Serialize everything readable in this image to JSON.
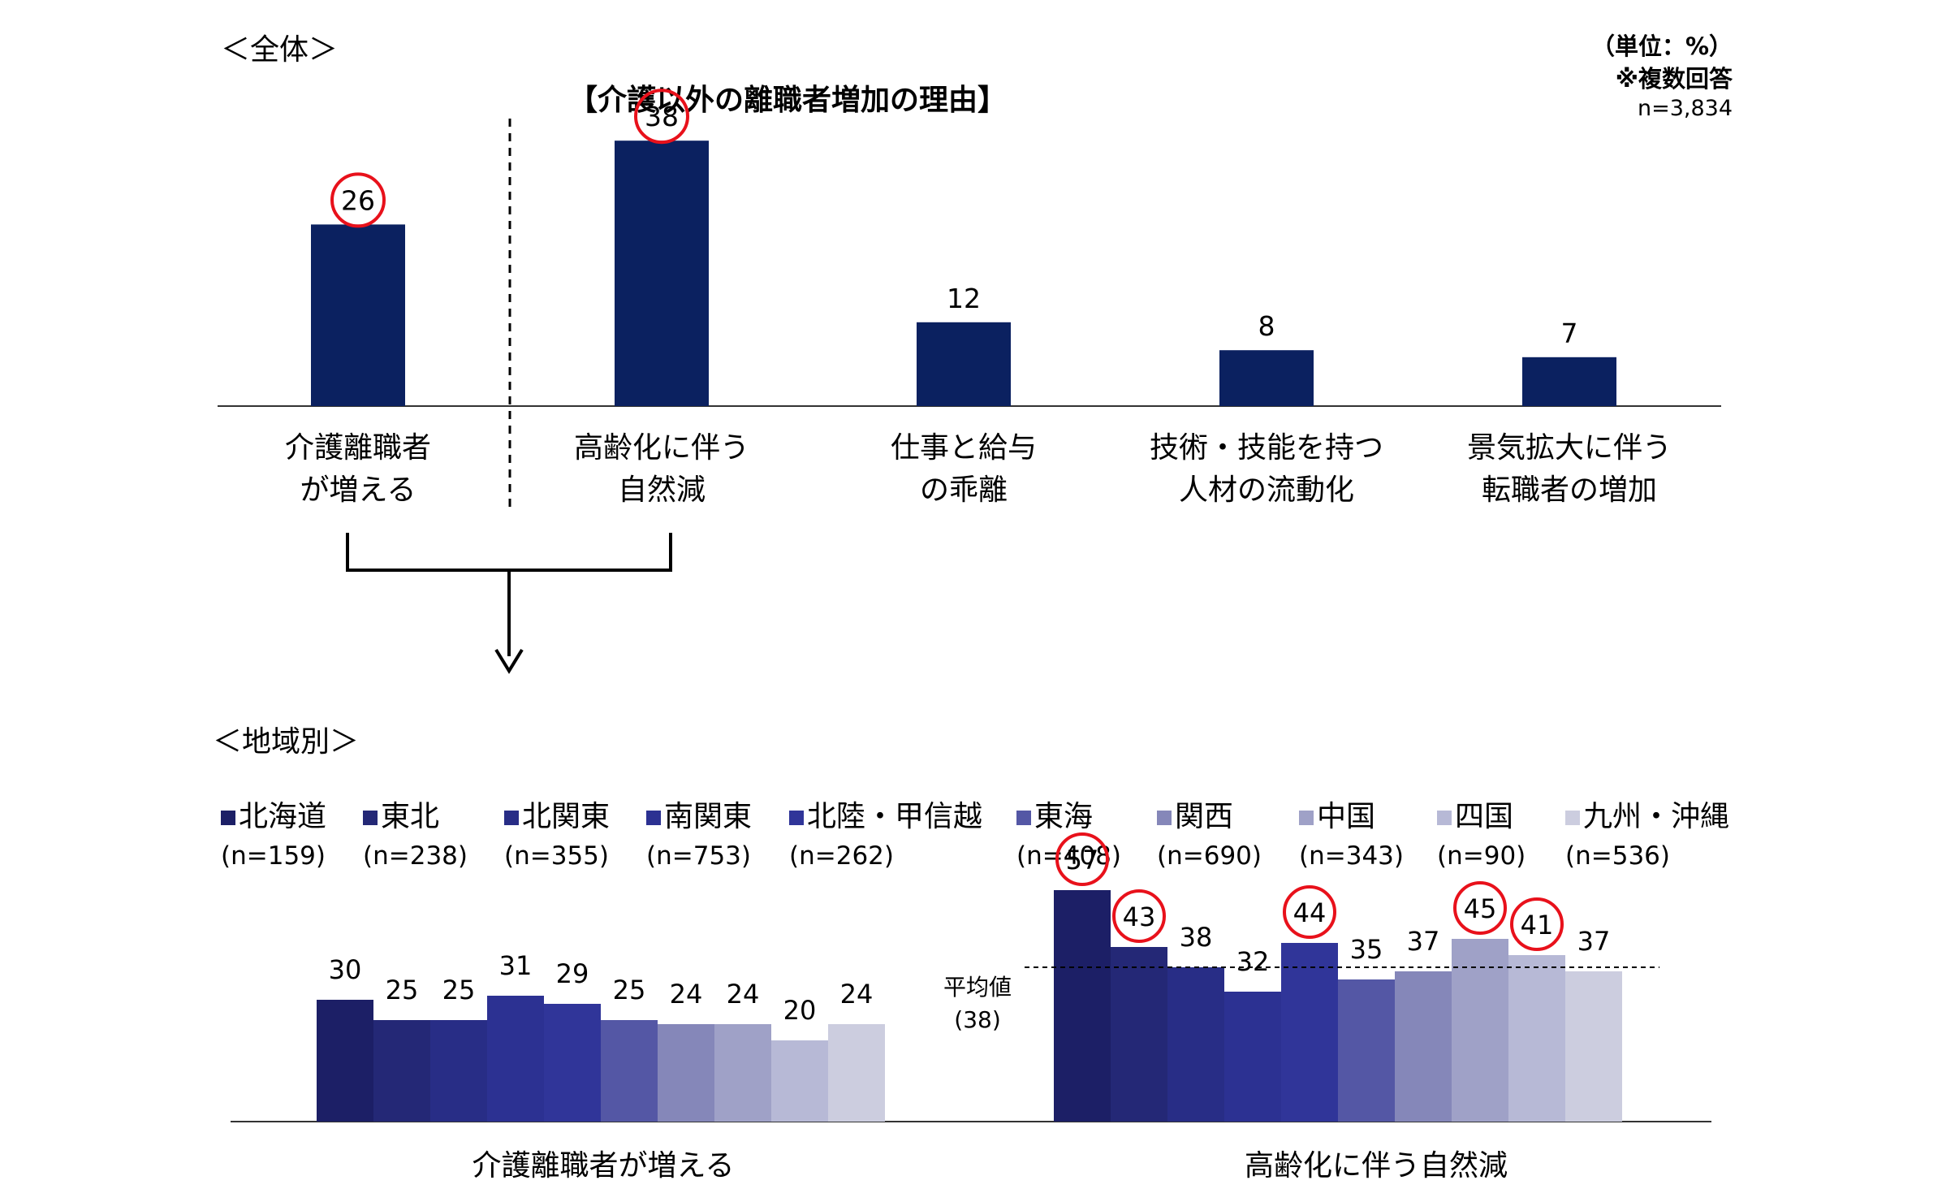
{
  "overall": {
    "section_title": "＜全体＞",
    "chart_title": "【介護以外の離職者増加の理由】",
    "unit_note": "（単位：%）",
    "multi_answer_note": "※複数回答",
    "n_note": "n=3,834"
  },
  "regional": {
    "section_title": "＜地域別＞",
    "avg_label_line1": "平均値",
    "avg_label_line2": "(38)"
  },
  "colors": {
    "top_bar": "#0b2160",
    "highlight_circle": "#e8111b",
    "region_colors": [
      "#1c1f66",
      "#242876",
      "#282d86",
      "#2c3192",
      "#303599",
      "#5457a5",
      "#8587b9",
      "#9fa1c7",
      "#b7b9d6",
      "#cccddf"
    ]
  },
  "chart_data": [
    {
      "type": "bar",
      "title": "【介護以外の離職者増加の理由】",
      "categories_line1": [
        "介護離職者",
        "高齢化に伴う",
        "仕事と給与",
        "技術・技能を持つ",
        "景気拡大に伴う"
      ],
      "categories_line2": [
        "が増える",
        "自然減",
        "の乖離",
        "人材の流動化",
        "転職者の増加"
      ],
      "values": [
        26,
        38,
        12,
        8,
        7
      ],
      "highlighted": [
        true,
        true,
        false,
        false,
        false
      ],
      "ylim": [
        0,
        40
      ]
    },
    {
      "type": "bar",
      "legend": [
        {
          "name": "北海道",
          "n": "(n=159)"
        },
        {
          "name": "東北",
          "n": "(n=238)"
        },
        {
          "name": "北関東",
          "n": "(n=355)"
        },
        {
          "name": "南関東",
          "n": "(n=753)"
        },
        {
          "name": "北陸・甲信越",
          "n": "(n=262)"
        },
        {
          "name": "東海",
          "n": "(n=408)"
        },
        {
          "name": "関西",
          "n": "(n=690)"
        },
        {
          "name": "中国",
          "n": "(n=343)"
        },
        {
          "name": "四国",
          "n": "(n=90)"
        },
        {
          "name": "九州・沖縄",
          "n": "(n=536)"
        }
      ],
      "groups": [
        {
          "label": "介護離職者が増える",
          "values": [
            30,
            25,
            25,
            31,
            29,
            25,
            24,
            24,
            20,
            24
          ],
          "highlighted": [
            false,
            false,
            false,
            false,
            false,
            false,
            false,
            false,
            false,
            false
          ]
        },
        {
          "label": "高齢化に伴う自然減",
          "values": [
            57,
            43,
            38,
            32,
            44,
            35,
            37,
            45,
            41,
            37
          ],
          "highlighted": [
            true,
            true,
            false,
            false,
            true,
            false,
            false,
            true,
            true,
            false
          ],
          "average": 38
        }
      ],
      "ylim": [
        0,
        60
      ]
    }
  ]
}
